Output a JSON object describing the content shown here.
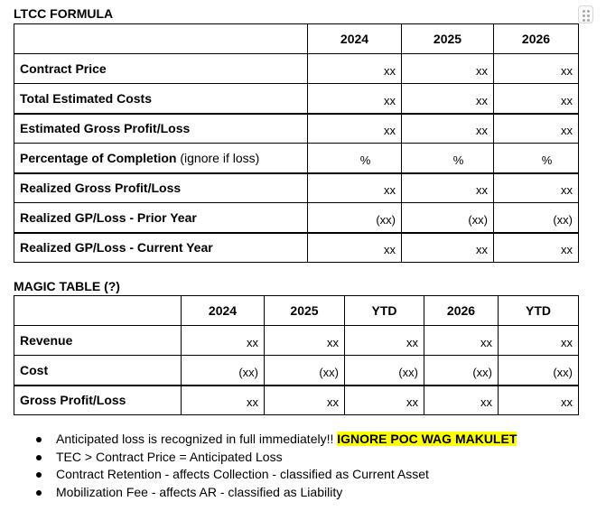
{
  "ltcc": {
    "title": "LTCC FORMULA",
    "years": [
      "2024",
      "2025",
      "2026"
    ],
    "rows": [
      {
        "label": "Contract Price",
        "note": "",
        "values": [
          "xx",
          "xx",
          "xx"
        ]
      },
      {
        "label": "Total Estimated Costs",
        "note": "",
        "values": [
          "xx",
          "xx",
          "xx"
        ]
      },
      {
        "label": "Estimated Gross Profit/Loss",
        "note": "",
        "values": [
          "xx",
          "xx",
          "xx"
        ]
      },
      {
        "label": "Percentage of Completion",
        "note": "(ignore if loss)",
        "values": [
          "%",
          "%",
          "%"
        ]
      },
      {
        "label": "Realized Gross Profit/Loss",
        "note": "",
        "values": [
          "xx",
          "xx",
          "xx"
        ]
      },
      {
        "label": "Realized GP/Loss - Prior Year",
        "note": "",
        "values": [
          "(xx)",
          "(xx)",
          "(xx)"
        ]
      },
      {
        "label": "Realized GP/Loss - Current Year",
        "note": "",
        "values": [
          "xx",
          "xx",
          "xx"
        ]
      }
    ]
  },
  "magic": {
    "title": "MAGIC TABLE (?)",
    "columns": [
      "2024",
      "2025",
      "YTD",
      "2026",
      "YTD"
    ],
    "rows": [
      {
        "label": "Revenue",
        "values": [
          "xx",
          "xx",
          "xx",
          "xx",
          "xx"
        ]
      },
      {
        "label": "Cost",
        "values": [
          "(xx)",
          "(xx)",
          "(xx)",
          "(xx)",
          "(xx)"
        ]
      },
      {
        "label": "Gross Profit/Loss",
        "values": [
          "xx",
          "xx",
          "xx",
          "xx",
          "xx"
        ]
      }
    ]
  },
  "notes": [
    {
      "text": "Anticipated loss is recognized in full immediately!! ",
      "highlight": "IGNORE POC WAG MAKULET"
    },
    {
      "text": "TEC > Contract Price = Anticipated Loss",
      "highlight": ""
    },
    {
      "text": "Contract Retention - affects Collection - classified as Current Asset",
      "highlight": ""
    },
    {
      "text": "Mobilization Fee - affects AR - classified as Liability",
      "highlight": ""
    }
  ]
}
